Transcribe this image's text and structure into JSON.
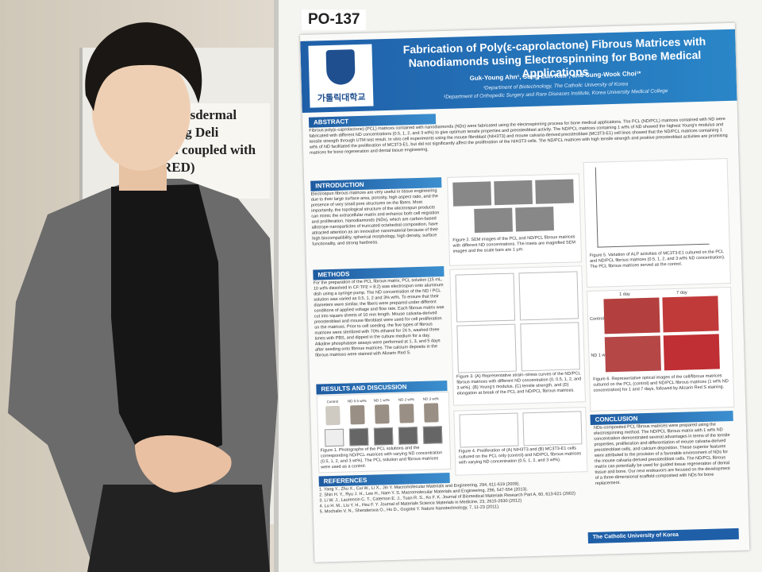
{
  "poster_id": "PO-137",
  "background_poster": {
    "lines": [
      "Transdermal Drug Deli",
      "gel coupled with",
      "RED)"
    ]
  },
  "poster": {
    "title": "Fabrication of Poly(ε-caprolactone) Fibrous Matrices with Nanodiamonds using Electrospinning for Bone Medical Applications",
    "authors": "Guk-Young Ahn¹, Sung-Eun Kim², and Sung-Wook Choi¹*",
    "affiliations": [
      "¹Department of Biotechnology, The Catholic University of Korea",
      "²Department of Orthopedic Surgery and Rare Diseases Institute, Korea University Medical College"
    ],
    "logo_text": "가톨릭대학교",
    "sections": {
      "abstract": {
        "heading": "ABSTRACT",
        "text": "Fibrous poly(ε-caprolactone) (PCL) matrices contained with nanodiamonds (NDs) were fabricated using the electrospinning process for bone medical applications. The PCL (ND/PCL) matrices contained with ND were fabricated with different ND concentrations (0.5, 1, 2, and 3 wt%) to give optimum tensile properties and preosteoblast activity. The ND/PCL matrices containing 1 wt% of ND showed the highest Young's modulus and tensile strength through UTM test result. In vitro cell experiments using the mouse fibroblast (NIH3T3) and mouse calvaria-derived preosteoblast (MC3T3-E1) cell lines showed that the ND/PCL matrices containing 1 wt% of ND facilitated the proliferation of MC3T3-E1, but did not significantly affect the proliferation of the NIH3T3 cells. The ND/PCL matrices with high tensile strength and positive preosteoblast activities are promising matrices for bone regeneration and dental tissue engineering."
      },
      "introduction": {
        "heading": "INTRODUCTION",
        "text": "Electrospun fibrous matrices are very useful in tissue engineering due to their large surface area, porosity, high aspect ratio, and the presence of very small pore structures on the fibers. Most importantly, the topological structure of the electrospun products can mimic the extracellular matrix and enhance both cell migration and proliferation. Nanodiamonds (NDs), which are carbon-based allotrope nanoparticles of truncated octahedral composition, have attracted attention as an innovative nanomaterial because of their high biocompatibility, spherical morphology, high density, surface functionality, and strong hardness."
      },
      "methods": {
        "heading": "METHODS",
        "text": "For the preparation of the PCL fibrous matrix, PCL solution (15 mL, 10 wt% dissolved in CF:TFE = 8:2) was electrospun onto aluminum dish using a syringe pump. The ND concentration of the ND / PCL solution was varied as 0.5, 1, 2 and 3% wt%. To ensure that their diameters were similar, the fibers were prepared under different conditions of applied voltage and flow rate. Each fibrous matrix was cut into square sheets of 10 mm length. Mouse calvaria-derived preosteoblast and mouse fibroblast were used for cell proliferation on the matrices. Prior to cell seeding, the five types of fibrous matrices were sterilized with 70% ethanol for 24 h, washed three times with PBS, and dipped in the culture medium for a day. Alkaline phosphatase assays were performed at 1, 3, and 5 days after seeding onto fibrous matrices. The calcium deposits in the fibrous matrices were stained with Alizarin Red S."
      },
      "results": {
        "heading": "RESULTS AND DISCUSSION"
      },
      "conclusion": {
        "heading": "CONCLUSION",
        "text": "NDs-composited PCL fibrous matrices were prepared using the electrospinning method. The ND/PCL fibrous matrix with 1 wt% ND concentration demonstrated several advantages in terms of the tensile properties, proliferation and differentiation of mouse calvaria-derived preosteoblast cells, and calcium deposition. These superior features were attributed to the provision of a favorable environment of NDs for the mouse calvaria-derived preosteoblast cells. The ND/PCL fibrous matrix can potentially be used for guided tissue regeneration of dental tissue and bone. Our next endeavors are focused on the development of a three-dimensional scaffold composited with NDs for bone replacement."
      },
      "references": {
        "heading": "REFERENCES",
        "items": [
          "1. Yang Y., Zhu X., Cui W., Li X., Jin Y. Macromolecular Materials and Engineering, 294, 611-619 (2009).",
          "2. Shin H. Y., Ryu J. H., Lee H., Nam Y. S. Macromolecular Materials and Engineering, 296, 547-554 (2013).",
          "3. Li W. J., Laurencin C. T., Caterson E. J., Tuan R. S., Ko F. K. Journal of Biomedical Materials Research Part A, 60, 613-621 (2002)",
          "4. Lu H. M., Liu Y. H., Hsu F. Y. Journal of Materials Science Materials in Medicine, 23, 2615-2630 (2012)",
          "5. Mochalin V. N., Shenderova O., Ho D., Gogotsi Y. Nature Nanotechnology, 7, 11-23 (2011)."
        ]
      }
    },
    "figure_captions": [
      "Figure 1. Photographs of the PCL solutions and the corresponding ND/PCL matrices with varying ND concentration (0.5, 1, 2, and 3 wt%). The PCL solution and fibrous matrices were used as a control.",
      "Figure 2. SEM images of the PCL and ND/PCL fibrous matrices with different ND concentrations. The insets are magnified SEM images and the scale bars are 1 μm.",
      "Figure 3. (A) Representative strain–stress curves of the ND/PCL fibrous matrices with different ND concentration (0, 0.5, 1, 2, and 3 wt%). (B) Young's modulus, (C) tensile strength, and (D) elongation at break of the PCL and ND/PCL fibrous matrices.",
      "Figure 4. Proliferation of (A) NIH3T3 and (B) MC3T3-E1 cells cultured on the PCL only (control) and ND/PCL fibrous matrices with varying ND concentration (0.5, 1, 2, and 3 wt%).",
      "Figure 5. Variation of ALP activities of MC3T3-E1 cultured on the PCL and ND/PCL fibrous matrices (0.5, 1, 2, and 3 wt% ND concentration). The PCL fibrous matrices served as the control.",
      "Figure 6. Representative optical images of the cell/fibrous matrices cultured on the PCL (control) and ND/PCL fibrous matrices (1 wt% ND concentration) for 1 and 7 days, followed by Alizarin Red S staining."
    ],
    "figure1_labels": [
      "Control",
      "ND 0.5 wt%",
      "ND 1 wt%",
      "ND 2 wt%",
      "ND 3 wt%"
    ],
    "figure6_labels": {
      "columns": [
        "1 day",
        "7 day"
      ],
      "rows": [
        "Control",
        "ND 1 wt%"
      ]
    },
    "footer": "The Catholic University of Korea"
  }
}
